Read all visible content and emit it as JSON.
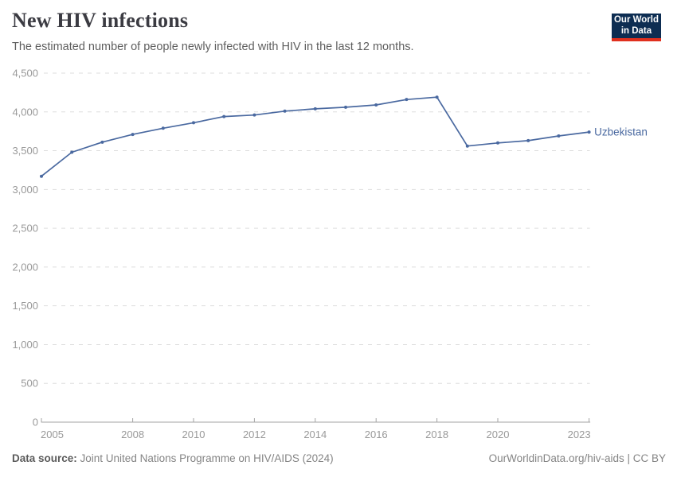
{
  "header": {
    "title": "New HIV infections",
    "subtitle": "The estimated number of people newly infected with HIV in the last 12 months."
  },
  "logo": {
    "line1": "Our World",
    "line2": "in Data",
    "bg_color": "#0d2d52",
    "accent_color": "#e0301e"
  },
  "chart_data": {
    "type": "line",
    "title": "New HIV infections",
    "x": [
      2005,
      2006,
      2007,
      2008,
      2009,
      2010,
      2011,
      2012,
      2013,
      2014,
      2015,
      2016,
      2017,
      2018,
      2019,
      2020,
      2021,
      2022,
      2023
    ],
    "series": [
      {
        "name": "Uzbekistan",
        "color": "#4a69a0",
        "values": [
          3170,
          3480,
          3610,
          3710,
          3790,
          3860,
          3940,
          3960,
          4010,
          4040,
          4060,
          4090,
          4160,
          4190,
          3560,
          3600,
          3630,
          3690,
          3740
        ]
      }
    ],
    "xlabel": "",
    "ylabel": "",
    "ylim": [
      0,
      4500
    ],
    "x_range": [
      2005,
      2023
    ],
    "grid": "horizontal-dashed",
    "legend_position": "end-of-line label",
    "y_ticks": [
      {
        "value": 0,
        "label": "0"
      },
      {
        "value": 500,
        "label": "500"
      },
      {
        "value": 1000,
        "label": "1,000"
      },
      {
        "value": 1500,
        "label": "1,500"
      },
      {
        "value": 2000,
        "label": "2,000"
      },
      {
        "value": 2500,
        "label": "2,500"
      },
      {
        "value": 3000,
        "label": "3,000"
      },
      {
        "value": 3500,
        "label": "3,500"
      },
      {
        "value": 4000,
        "label": "4,000"
      },
      {
        "value": 4500,
        "label": "4,500"
      }
    ],
    "x_ticks": [
      {
        "value": 2005,
        "label": "2005"
      },
      {
        "value": 2008,
        "label": "2008"
      },
      {
        "value": 2010,
        "label": "2010"
      },
      {
        "value": 2012,
        "label": "2012"
      },
      {
        "value": 2014,
        "label": "2014"
      },
      {
        "value": 2016,
        "label": "2016"
      },
      {
        "value": 2018,
        "label": "2018"
      },
      {
        "value": 2020,
        "label": "2020"
      },
      {
        "value": 2023,
        "label": "2023"
      }
    ],
    "colors": {
      "gridline": "#dedede",
      "axis": "#a3a3a3",
      "tick_label": "#999999"
    }
  },
  "footer": {
    "source_label": "Data source:",
    "source_text": " Joint United Nations Programme on HIV/AIDS (2024)",
    "link_text": "OurWorldinData.org/hiv-aids | CC BY"
  }
}
